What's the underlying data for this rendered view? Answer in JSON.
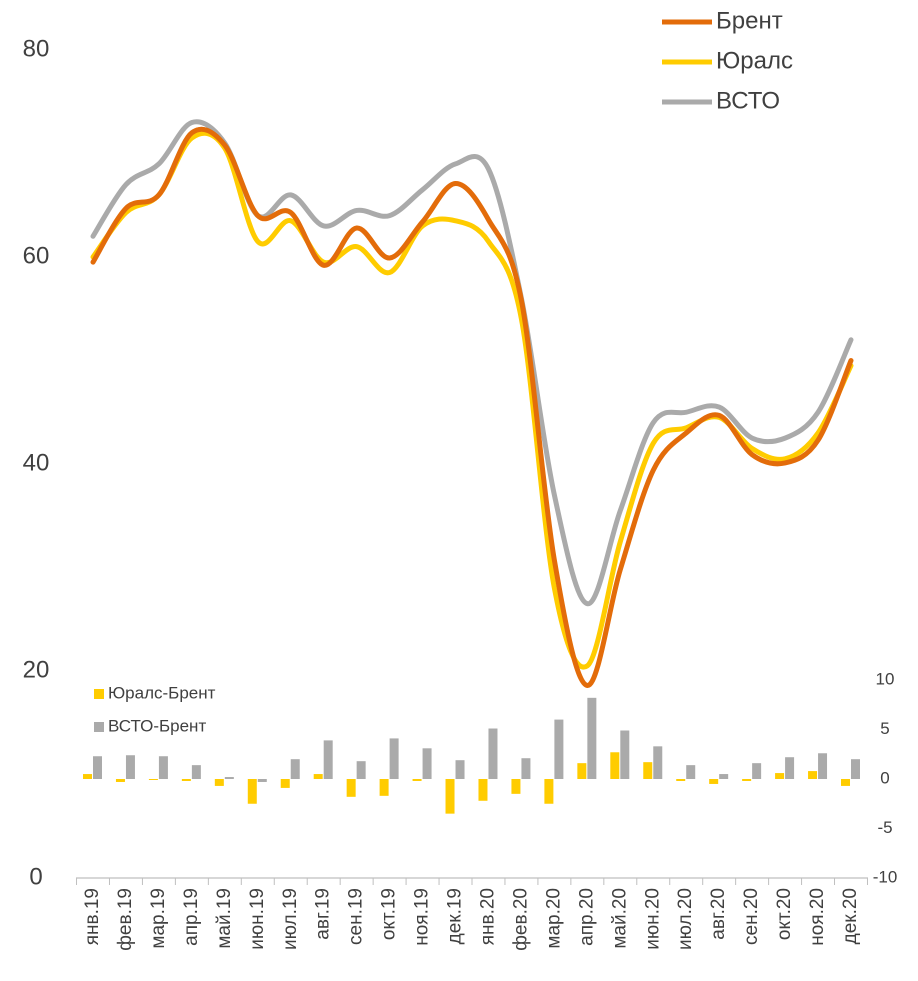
{
  "chart_data": {
    "type": "combo",
    "categories": [
      "янв.19",
      "фев.19",
      "мар.19",
      "апр.19",
      "май.19",
      "июн.19",
      "июл.19",
      "авг.19",
      "сен.19",
      "окт.19",
      "ноя.19",
      "дек.19",
      "янв.20",
      "фев.20",
      "мар.20",
      "апр.20",
      "май.20",
      "июн.20",
      "июл.20",
      "авг.20",
      "сен.20",
      "окт.20",
      "ноя.20",
      "дек.20"
    ],
    "series": [
      {
        "name": "Брент",
        "type": "line",
        "color": "#e36c0a",
        "values": [
          59.5,
          64.7,
          66,
          72,
          70.8,
          64,
          64.3,
          59.2,
          62.8,
          59.9,
          63.4,
          67.1,
          63.6,
          55.8,
          30.7,
          18.6,
          29.8,
          39.4,
          43,
          44.7,
          40.9,
          40.1,
          42.3,
          50
        ]
      },
      {
        "name": "Юралс",
        "type": "line",
        "color": "#ffcc00",
        "values": [
          60,
          64.3,
          66,
          71.5,
          70.5,
          61.5,
          63.5,
          59.5,
          61,
          58.5,
          63,
          63.5,
          61.5,
          54,
          28,
          20.5,
          32.5,
          42,
          43.5,
          44.5,
          41.5,
          40.5,
          43,
          49.5
        ]
      },
      {
        "name": "ВСТО",
        "type": "line",
        "color": "#aaaaaa",
        "values": [
          62,
          67,
          69,
          73,
          71,
          64,
          66,
          63,
          64.5,
          64,
          66.5,
          69,
          68.5,
          56,
          37,
          26.5,
          35.5,
          44,
          45,
          45.5,
          42.5,
          42.5,
          45,
          52
        ]
      },
      {
        "name": "Юралс-Брент",
        "type": "bar",
        "axis": "y2",
        "color": "#ffcc00",
        "values": [
          0.5,
          -0.3,
          -0.1,
          -0.2,
          -0.7,
          -2.5,
          -0.9,
          0.5,
          -1.8,
          -1.7,
          -0.2,
          -3.5,
          -2.2,
          -1.5,
          -2.5,
          1.6,
          2.7,
          1.7,
          -0.2,
          -0.5,
          -0.2,
          0.6,
          0.8,
          -0.7
        ]
      },
      {
        "name": "ВСТО-Брент",
        "type": "bar",
        "axis": "y2",
        "color": "#aaaaaa",
        "values": [
          2.3,
          2.4,
          2.3,
          1.4,
          0.2,
          -0.3,
          2,
          3.9,
          1.8,
          4.1,
          3.1,
          1.9,
          5.1,
          2.1,
          6,
          8.2,
          4.9,
          3.3,
          1.4,
          0.5,
          1.6,
          2.2,
          2.6,
          2
        ]
      }
    ],
    "ylim": [
      0,
      80
    ],
    "yticks": [
      0,
      20,
      40,
      60,
      80
    ],
    "y2lim": [
      -10,
      10
    ],
    "y2ticks": [
      -10,
      -5,
      0,
      5,
      10
    ],
    "grid": false,
    "legend": "top-right"
  }
}
